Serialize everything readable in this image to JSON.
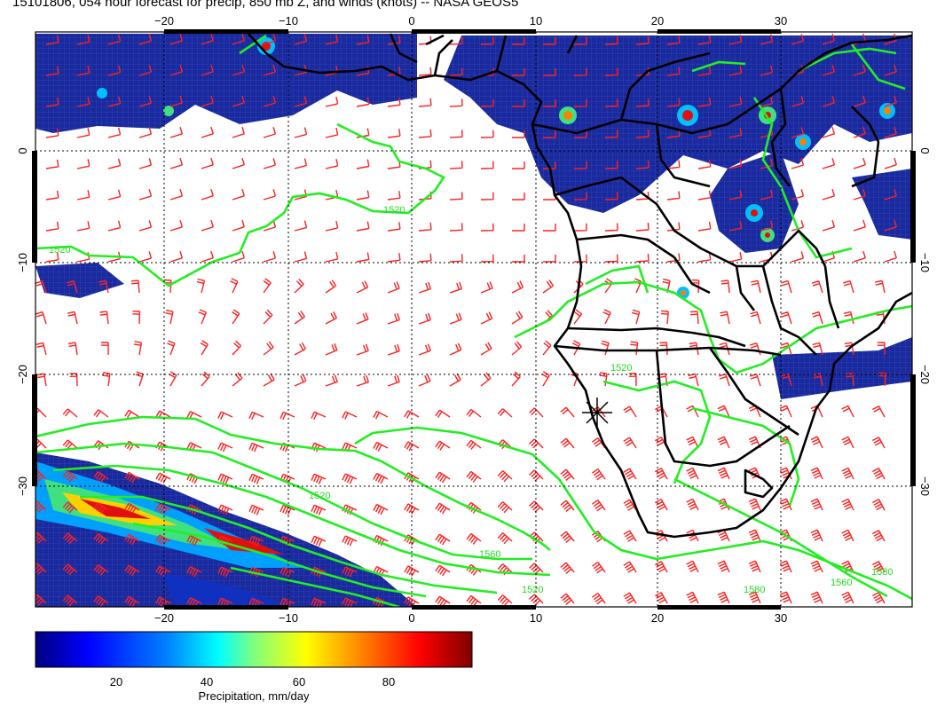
{
  "title": "15101806, 054 hour forecast for precip, 850 mb Z, and winds (knots) -- NASA GEOS5",
  "map": {
    "lon_ticks_top": [
      "−20",
      "−10",
      "0",
      "10",
      "20",
      "30"
    ],
    "lon_ticks_bottom": [
      "−20",
      "−10",
      "0",
      "10",
      "20",
      "30"
    ],
    "lat_ticks_left": [
      "0",
      "−10",
      "−20",
      "−30"
    ],
    "lat_ticks_right": [
      "0",
      "−10",
      "−20",
      "−30"
    ],
    "contour_labels": [
      "1520",
      "1520",
      "1520",
      "1520",
      "1520",
      "1580",
      "1580",
      "1560",
      "1560"
    ],
    "colors": {
      "wind_barbs": "#ff2020",
      "contours": "#22ee22",
      "coastlines": "#000000",
      "grid": "#000000"
    }
  },
  "colorbar": {
    "ticks": [
      "20",
      "40",
      "60",
      "80"
    ],
    "label": "Precipitation, mm/day",
    "range": [
      0,
      100
    ],
    "colormap": [
      "#00007f",
      "#0000ff",
      "#0080ff",
      "#00ffff",
      "#80ff80",
      "#ffff00",
      "#ff8000",
      "#ff0000",
      "#7f0000"
    ]
  }
}
